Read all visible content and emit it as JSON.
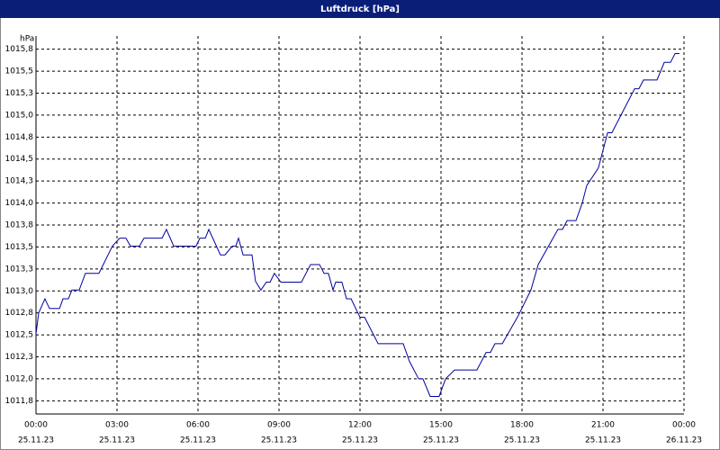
{
  "chart_data": {
    "type": "line",
    "title": "Luftdruck [hPa]",
    "y_unit": "hPa",
    "x": [
      0,
      0.1,
      0.33,
      0.5,
      0.87,
      1.0,
      1.2,
      1.33,
      1.6,
      1.83,
      2.33,
      2.83,
      3.1,
      3.33,
      3.5,
      3.83,
      4.0,
      4.67,
      4.83,
      5.1,
      5.93,
      6.07,
      6.27,
      6.4,
      6.83,
      7.0,
      7.27,
      7.4,
      7.5,
      7.67,
      8.0,
      8.13,
      8.33,
      8.53,
      8.67,
      8.83,
      9.07,
      9.83,
      10.17,
      10.5,
      10.67,
      10.83,
      11.0,
      11.1,
      11.33,
      11.5,
      11.67,
      12.0,
      12.17,
      12.67,
      13.6,
      13.83,
      14.17,
      14.33,
      14.6,
      14.93,
      15.17,
      15.5,
      16.33,
      16.67,
      16.83,
      17.0,
      17.27,
      17.83,
      18.33,
      18.6,
      19.33,
      19.5,
      19.67,
      20.0,
      20.23,
      20.4,
      20.83,
      21.17,
      21.33,
      22.17,
      22.33,
      22.5,
      23.0,
      23.27,
      23.5,
      23.67,
      23.83
    ],
    "series": [
      {
        "name": "Luftdruck",
        "color": "#0000a0",
        "values": [
          1012.51,
          1012.75,
          1012.91,
          1012.8,
          1012.8,
          1012.91,
          1012.91,
          1013.01,
          1013.01,
          1013.2,
          1013.2,
          1013.51,
          1013.6,
          1013.6,
          1013.51,
          1013.51,
          1013.6,
          1013.6,
          1013.7,
          1013.51,
          1013.51,
          1013.6,
          1013.6,
          1013.7,
          1013.41,
          1013.41,
          1013.51,
          1013.51,
          1013.6,
          1013.41,
          1013.41,
          1013.11,
          1013.01,
          1013.1,
          1013.1,
          1013.2,
          1013.1,
          1013.1,
          1013.3,
          1013.3,
          1013.2,
          1013.2,
          1013.01,
          1013.1,
          1013.1,
          1012.91,
          1012.91,
          1012.7,
          1012.7,
          1012.4,
          1012.4,
          1012.2,
          1012.0,
          1012.0,
          1011.8,
          1011.8,
          1012.0,
          1012.1,
          1012.1,
          1012.3,
          1012.3,
          1012.4,
          1012.4,
          1012.7,
          1013.01,
          1013.3,
          1013.7,
          1013.7,
          1013.8,
          1013.8,
          1014.0,
          1014.2,
          1014.4,
          1014.8,
          1014.8,
          1015.3,
          1015.3,
          1015.4,
          1015.4,
          1015.6,
          1015.6,
          1015.7,
          1015.7
        ]
      }
    ],
    "xlim": [
      0,
      24
    ],
    "xticks": [
      {
        "value": 0,
        "label": "00:00"
      },
      {
        "value": 3,
        "label": "03:00"
      },
      {
        "value": 6,
        "label": "06:00"
      },
      {
        "value": 9,
        "label": "09:00"
      },
      {
        "value": 12,
        "label": "12:00"
      },
      {
        "value": 15,
        "label": "15:00"
      },
      {
        "value": 18,
        "label": "18:00"
      },
      {
        "value": 21,
        "label": "21:00"
      },
      {
        "value": 24,
        "label": "00:00"
      }
    ],
    "xtick_dates": [
      "25.11.23",
      "25.11.23",
      "25.11.23",
      "25.11.23",
      "25.11.23",
      "25.11.23",
      "25.11.23",
      "25.11.23",
      "26.11.23"
    ],
    "ylim": [
      1011.6,
      1015.9
    ],
    "yticks": [
      {
        "value": 1011.75,
        "label": "1011,8"
      },
      {
        "value": 1012,
        "label": "1012,0"
      },
      {
        "value": 1012.25,
        "label": "1012,3"
      },
      {
        "value": 1012.5,
        "label": "1012,5"
      },
      {
        "value": 1012.75,
        "label": "1012,8"
      },
      {
        "value": 1013,
        "label": "1013,0"
      },
      {
        "value": 1013.25,
        "label": "1013,3"
      },
      {
        "value": 1013.5,
        "label": "1013,5"
      },
      {
        "value": 1013.75,
        "label": "1013,8"
      },
      {
        "value": 1014,
        "label": "1014,0"
      },
      {
        "value": 1014.25,
        "label": "1014,3"
      },
      {
        "value": 1014.5,
        "label": "1014,5"
      },
      {
        "value": 1014.75,
        "label": "1014,8"
      },
      {
        "value": 1015,
        "label": "1015,0"
      },
      {
        "value": 1015.25,
        "label": "1015,3"
      },
      {
        "value": 1015.5,
        "label": "1015,5"
      },
      {
        "value": 1015.75,
        "label": "1015,8"
      }
    ],
    "grid": true
  }
}
